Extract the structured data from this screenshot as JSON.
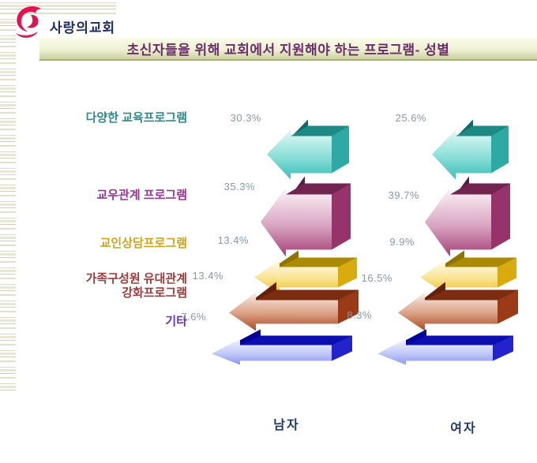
{
  "brand": {
    "church_name": "사랑의교회",
    "logo_color": "#e4134f",
    "name_color": "#1b2a66"
  },
  "title": {
    "text": "초신자들을 위해 교회에서 지원해야 하는 프로그램- 성별",
    "color": "#6b2d6b"
  },
  "chart_data": {
    "type": "bar",
    "subtype": "3d-left-arrow-pictogram",
    "title": "초신자들을 위해 교회에서 지원해야 하는 프로그램- 성별",
    "unit": "%",
    "categories": [
      "다양한 교육프로그램",
      "교우관계 프로그램",
      "교인상담프로그램",
      "가족구성원 유대관계\n강화프로그램",
      "기타"
    ],
    "series": [
      {
        "name": "남자",
        "values": [
          30.3,
          35.3,
          13.4,
          13.4,
          7.6
        ]
      },
      {
        "name": "여자",
        "values": [
          25.6,
          39.7,
          9.9,
          16.5,
          8.3
        ]
      }
    ],
    "category_colors": [
      "#2e8b88",
      "#993399",
      "#d1a419",
      "#a33a3a",
      "#6633cc"
    ],
    "arrow_colors": [
      {
        "name": "teal",
        "back": "#0f6b68",
        "top": "#1d8a86",
        "side": "#2fa9a4",
        "grad": [
          "#e2f9f6",
          "#8adfd9",
          "#3dbcb6"
        ]
      },
      {
        "name": "purple",
        "back": "#5a1a41",
        "top": "#722350",
        "side": "#96336b",
        "grad": [
          "#fdf6fa",
          "#d9a5c2",
          "#a43d74"
        ]
      },
      {
        "name": "gold",
        "back": "#8f7300",
        "top": "#ab8a05",
        "side": "#d9ab0e",
        "grad": [
          "#fffdf0",
          "#f9e391",
          "#eebf2f"
        ]
      },
      {
        "name": "brown",
        "back": "#65200a",
        "top": "#7c2c10",
        "side": "#9a3a17",
        "grad": [
          "#f9efe8",
          "#dba084",
          "#aa4a24"
        ]
      },
      {
        "name": "blue",
        "back": "#03039a",
        "top": "#0d0db0",
        "side": "#2323cd",
        "grad": [
          "#f3f4ff",
          "#c3caf8",
          "#8d97ee"
        ]
      }
    ],
    "value_label_color": "#8a97a6",
    "series_label_color": "#1f3864",
    "legend_position": "bottom",
    "grid": false
  }
}
